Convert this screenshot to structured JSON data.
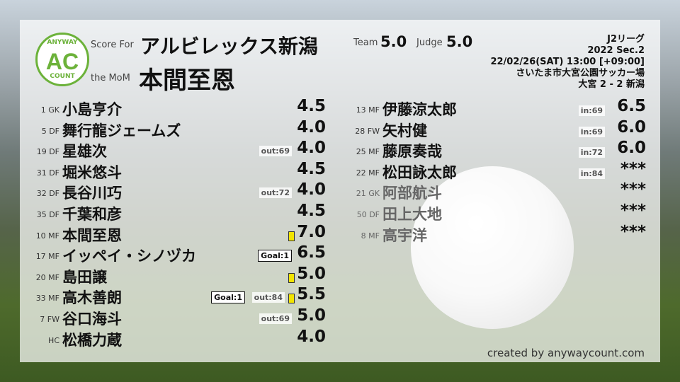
{
  "header": {
    "score_for_label": "Score For",
    "team_name": "アルビレックス新潟",
    "mom_label": "the MoM",
    "mom_name": "本間至恩",
    "team_label": "Team",
    "team_score": "5.0",
    "judge_label": "Judge",
    "judge_score": "5.0"
  },
  "logo": {
    "top": "ANYWAY",
    "center": "AC",
    "bottom": "COUNT",
    "color": "#6cb23a"
  },
  "match": {
    "league": "J2リーグ",
    "season": "2022 Sec.2",
    "datetime": "22/02/26(SAT) 13:00 [+09:00]",
    "venue": "さいたま市大宮公園サッカー場",
    "result": "大宮 2 - 2 新潟"
  },
  "starters": [
    {
      "num": "1 GK",
      "name": "小島亨介",
      "score": "4.5"
    },
    {
      "num": "5 DF",
      "name": "舞行龍ジェームズ",
      "score": "4.0"
    },
    {
      "num": "19 DF",
      "name": "星雄次",
      "score": "4.0",
      "out": "out:69"
    },
    {
      "num": "31 DF",
      "name": "堀米悠斗",
      "score": "4.5"
    },
    {
      "num": "32 DF",
      "name": "長谷川巧",
      "score": "4.0",
      "out": "out:72"
    },
    {
      "num": "35 DF",
      "name": "千葉和彦",
      "score": "4.5"
    },
    {
      "num": "10 MF",
      "name": "本間至恩",
      "score": "7.0",
      "card": "yellow"
    },
    {
      "num": "17 MF",
      "name": "イッペイ・シノヅカ",
      "score": "6.5",
      "goal": "Goal:1"
    },
    {
      "num": "20 MF",
      "name": "島田譲",
      "score": "5.0",
      "card": "yellow"
    },
    {
      "num": "33 MF",
      "name": "高木善朗",
      "score": "5.5",
      "goal": "Goal:1",
      "out": "out:84",
      "card": "yellow"
    },
    {
      "num": "7 FW",
      "name": "谷口海斗",
      "score": "5.0",
      "out": "out:69"
    },
    {
      "num": "HC",
      "name": "松橋力蔵",
      "score": "4.0"
    }
  ],
  "subs": [
    {
      "num": "13 MF",
      "name": "伊藤涼太郎",
      "score": "6.5",
      "in": "in:69"
    },
    {
      "num": "28 FW",
      "name": "矢村健",
      "score": "6.0",
      "in": "in:69"
    },
    {
      "num": "25 MF",
      "name": "藤原奏哉",
      "score": "6.0",
      "in": "in:72"
    },
    {
      "num": "22 MF",
      "name": "松田詠太郎",
      "score": "***",
      "in": "in:84"
    },
    {
      "num": "21 GK",
      "name": "阿部航斗",
      "score": "***",
      "unused": true
    },
    {
      "num": "50 DF",
      "name": "田上大地",
      "score": "***",
      "unused": true
    },
    {
      "num": "8 MF",
      "name": "高宇洋",
      "score": "***",
      "unused": true
    }
  ],
  "footer": {
    "credit": "created by anywaycount.com"
  }
}
